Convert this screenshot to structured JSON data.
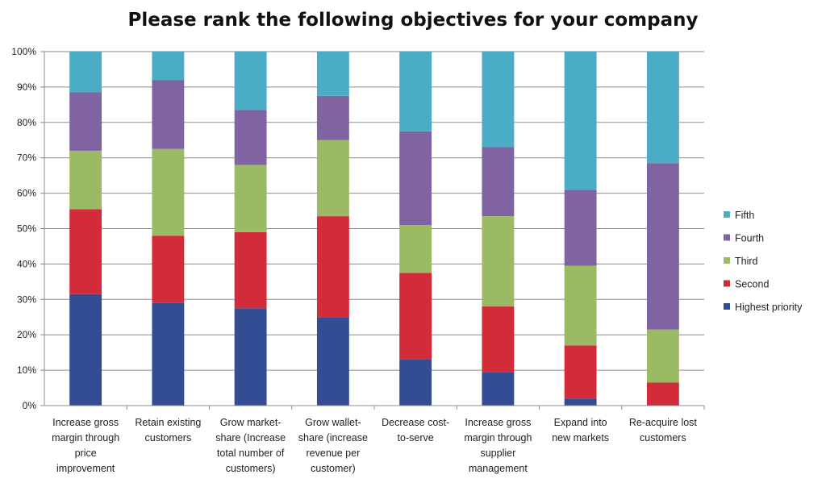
{
  "chart_data": {
    "type": "bar",
    "stacked": true,
    "percent": true,
    "title": "Please rank the following objectives for your company",
    "xlabel": "",
    "ylabel": "",
    "ylim": [
      0,
      100
    ],
    "yticks": [
      "0%",
      "10%",
      "20%",
      "30%",
      "40%",
      "50%",
      "60%",
      "70%",
      "80%",
      "90%",
      "100%"
    ],
    "grid": true,
    "legend_position": "right",
    "categories": [
      "Increase gross margin through price improvement",
      "Retain existing customers",
      "Grow market-share (Increase total number of customers)",
      "Grow wallet-share (increase revenue per customer)",
      "Decrease cost-to-serve",
      "Increase gross margin through supplier management",
      "Expand into new markets",
      "Re-acquire lost customers"
    ],
    "category_lines": [
      [
        "Increase gross",
        "margin through",
        "price",
        "improvement"
      ],
      [
        "Retain existing",
        "customers"
      ],
      [
        "Grow market-",
        "share (Increase",
        "total number of",
        "customers)"
      ],
      [
        "Grow wallet-",
        "share (increase",
        "revenue per",
        "customer)"
      ],
      [
        "Decrease cost-",
        "to-serve"
      ],
      [
        "Increase gross",
        "margin through",
        "supplier",
        "management"
      ],
      [
        "Expand into",
        "new markets"
      ],
      [
        "Re-acquire lost",
        "customers"
      ]
    ],
    "series": [
      {
        "name": "Highest priority",
        "color": "#334d94",
        "values": [
          31.5,
          29,
          27.5,
          25,
          13,
          9.5,
          2,
          0
        ]
      },
      {
        "name": "Second",
        "color": "#d22b3a",
        "values": [
          24,
          19,
          21.5,
          28.5,
          24.5,
          18.5,
          15,
          6.5
        ]
      },
      {
        "name": "Third",
        "color": "#9abb63",
        "values": [
          16.5,
          24.5,
          19,
          21.5,
          13.5,
          25.5,
          22.5,
          15
        ]
      },
      {
        "name": "Fourth",
        "color": "#8064a2",
        "values": [
          16.5,
          19.5,
          15.5,
          12.5,
          26.5,
          19.5,
          21.5,
          47
        ]
      },
      {
        "name": "Fifth",
        "color": "#4bacc6",
        "values": [
          11.5,
          8,
          16.5,
          12.5,
          22.5,
          27,
          39,
          31.5
        ]
      }
    ],
    "legend_order": [
      "Fifth",
      "Fourth",
      "Third",
      "Second",
      "Highest priority"
    ]
  }
}
